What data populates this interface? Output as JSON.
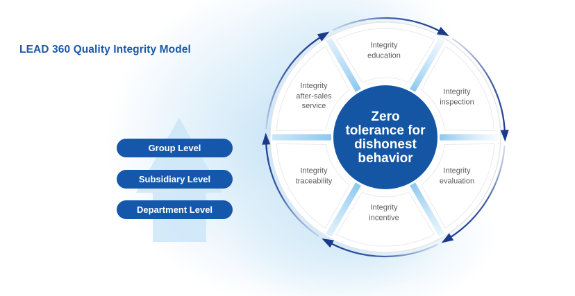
{
  "title": "LEAD 360 Quality Integrity Model",
  "levels": {
    "items": [
      {
        "label": "Group Level"
      },
      {
        "label": "Subsidiary Level"
      },
      {
        "label": "Department Level"
      }
    ]
  },
  "wheel": {
    "center_text": "Zero\ntolerance for\ndishonest\nbehavior",
    "segments": [
      {
        "label": "Integrity\neducation"
      },
      {
        "label": "Integrity\ninspection"
      },
      {
        "label": "Integrity\nevaluation"
      },
      {
        "label": "Integrity\nincentive"
      },
      {
        "label": "Integrity\ntraceability"
      },
      {
        "label": "Integrity\nafter-sales\nservice"
      }
    ]
  },
  "icons": {
    "cycle": "clockwise-arrow-ring-icon",
    "hierarchy": "up-arrow-icon"
  },
  "colors": {
    "navy": "#1c3a8c",
    "navy_mid": "#31509b",
    "primary_blue": "#1456a4",
    "pill_blue": "#1457ab",
    "spoke_blue": "#86c5ee",
    "spoke_fade": "#bfe1f6",
    "ring_gray": "#e3e5ea",
    "wedge_gray": "#e9eaee",
    "light_arrow": "#cbe5f7",
    "label_gray": "#5c5c5e",
    "title_blue": "#1b58a8"
  }
}
